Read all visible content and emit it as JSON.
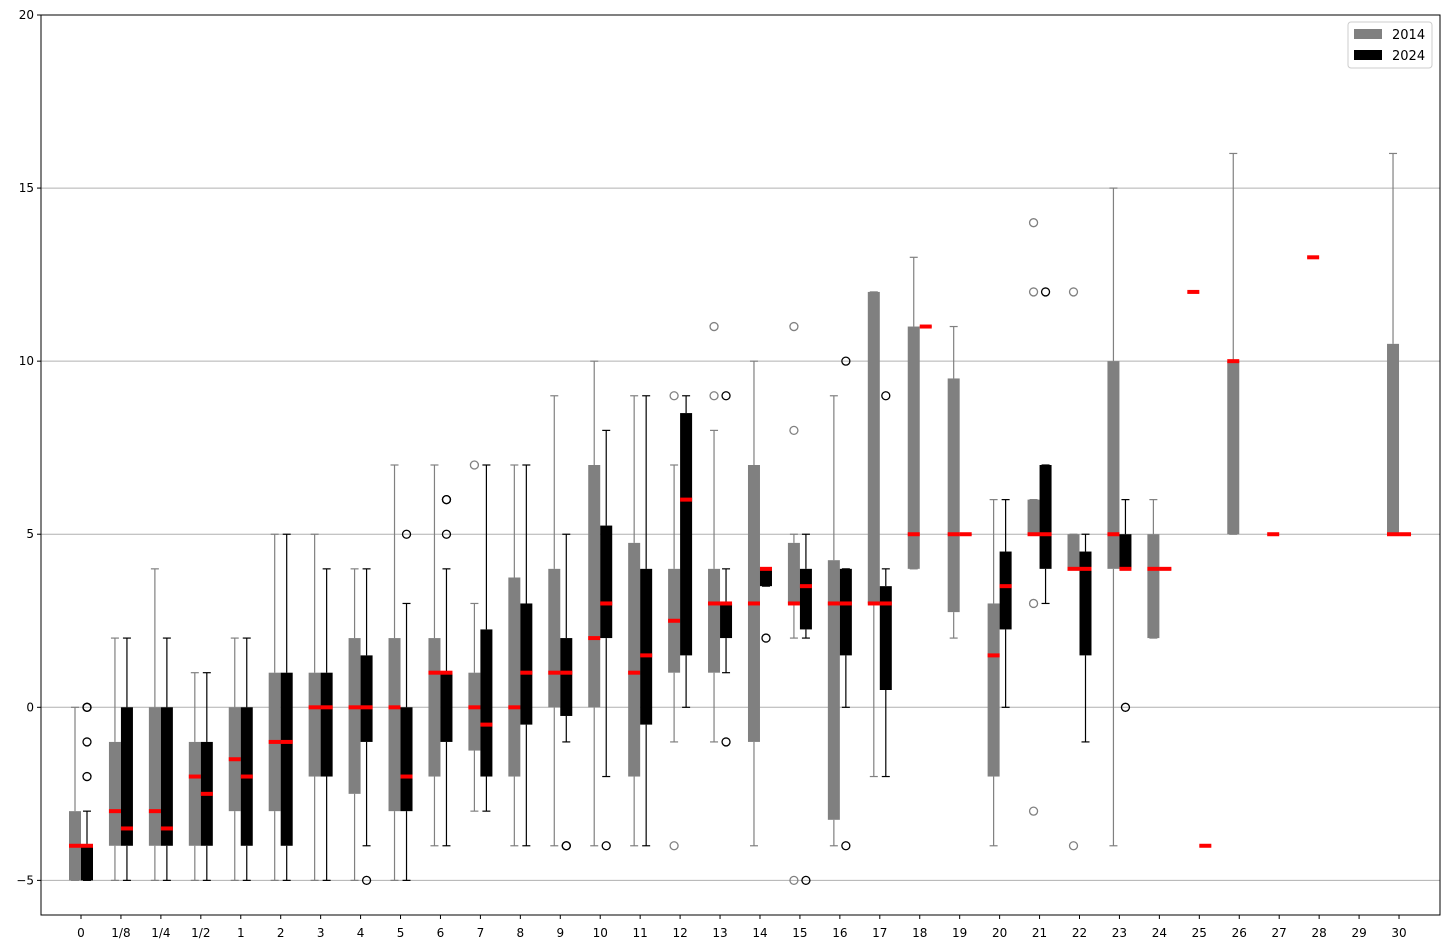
{
  "chart_data": {
    "type": "boxplot",
    "categories": [
      "0",
      "1/8",
      "1/4",
      "1/2",
      "1",
      "2",
      "3",
      "4",
      "5",
      "6",
      "7",
      "8",
      "9",
      "10",
      "11",
      "12",
      "13",
      "14",
      "15",
      "16",
      "17",
      "18",
      "19",
      "20",
      "21",
      "22",
      "23",
      "24",
      "25",
      "26",
      "27",
      "28",
      "29",
      "30"
    ],
    "ylim": [
      -6,
      20
    ],
    "yticks": [
      -5,
      0,
      5,
      10,
      15,
      20
    ],
    "ytick_labels": [
      "−5",
      "0",
      "5",
      "10",
      "15",
      "20"
    ],
    "grid": "y",
    "legend": {
      "position": "top-right"
    },
    "colors": {
      "2014": "#808080",
      "2024": "#000000",
      "median": "#ff0000",
      "grid": "#b0b0b0"
    },
    "series": [
      {
        "name": "2014",
        "boxes": [
          {
            "cat": "0",
            "q1": -5,
            "q3": -3,
            "med": -4,
            "wlo": -5,
            "whi": 0,
            "fliers": []
          },
          {
            "cat": "1/8",
            "q1": -4,
            "q3": -1,
            "med": -3,
            "wlo": -5,
            "whi": 2,
            "fliers": []
          },
          {
            "cat": "1/4",
            "q1": -4,
            "q3": 0,
            "med": -3,
            "wlo": -5,
            "whi": 4,
            "fliers": []
          },
          {
            "cat": "1/2",
            "q1": -4,
            "q3": -1,
            "med": -2,
            "wlo": -5,
            "whi": 1,
            "fliers": []
          },
          {
            "cat": "1",
            "q1": -3,
            "q3": 0,
            "med": -1.5,
            "wlo": -5,
            "whi": 2,
            "fliers": []
          },
          {
            "cat": "2",
            "q1": -3,
            "q3": 1,
            "med": -1,
            "wlo": -5,
            "whi": 5,
            "fliers": []
          },
          {
            "cat": "3",
            "q1": -2,
            "q3": 1,
            "med": 0,
            "wlo": -5,
            "whi": 5,
            "fliers": []
          },
          {
            "cat": "4",
            "q1": -2.5,
            "q3": 2,
            "med": 0,
            "wlo": -5,
            "whi": 4,
            "fliers": []
          },
          {
            "cat": "5",
            "q1": -3,
            "q3": 2,
            "med": 0,
            "wlo": -5,
            "whi": 7,
            "fliers": []
          },
          {
            "cat": "6",
            "q1": -2,
            "q3": 2,
            "med": 1,
            "wlo": -4,
            "whi": 7,
            "fliers": []
          },
          {
            "cat": "7",
            "q1": -1.25,
            "q3": 1,
            "med": 0,
            "wlo": -3,
            "whi": 3,
            "fliers": [
              7
            ]
          },
          {
            "cat": "8",
            "q1": -2,
            "q3": 3.75,
            "med": 0,
            "wlo": -4,
            "whi": 7,
            "fliers": []
          },
          {
            "cat": "9",
            "q1": 0,
            "q3": 4,
            "med": 1,
            "wlo": -4,
            "whi": 9,
            "fliers": []
          },
          {
            "cat": "10",
            "q1": 0,
            "q3": 7,
            "med": 2,
            "wlo": -4,
            "whi": 10,
            "fliers": []
          },
          {
            "cat": "11",
            "q1": -2,
            "q3": 4.75,
            "med": 1,
            "wlo": -4,
            "whi": 9,
            "fliers": []
          },
          {
            "cat": "12",
            "q1": 1,
            "q3": 4,
            "med": 2.5,
            "wlo": -1,
            "whi": 7,
            "fliers": [
              9,
              -4
            ]
          },
          {
            "cat": "13",
            "q1": 1,
            "q3": 4,
            "med": 3,
            "wlo": -1,
            "whi": 8,
            "fliers": [
              11,
              9
            ]
          },
          {
            "cat": "14",
            "q1": -1,
            "q3": 7,
            "med": 3,
            "wlo": -4,
            "whi": 10,
            "fliers": []
          },
          {
            "cat": "15",
            "q1": 3,
            "q3": 4.75,
            "med": 3,
            "wlo": 2,
            "whi": 5,
            "fliers": [
              11,
              8,
              -5
            ]
          },
          {
            "cat": "16",
            "q1": -3.25,
            "q3": 4.25,
            "med": 3,
            "wlo": -4,
            "whi": 9,
            "fliers": []
          },
          {
            "cat": "17",
            "q1": 3,
            "q3": 12,
            "med": 3,
            "wlo": -2,
            "whi": 12,
            "fliers": []
          },
          {
            "cat": "18",
            "q1": 4,
            "q3": 11,
            "med": 5,
            "wlo": 4,
            "whi": 13,
            "fliers": []
          },
          {
            "cat": "19",
            "q1": 2.75,
            "q3": 9.5,
            "med": 5,
            "wlo": 2,
            "whi": 11,
            "fliers": []
          },
          {
            "cat": "20",
            "q1": -2,
            "q3": 3,
            "med": 1.5,
            "wlo": -4,
            "whi": 6,
            "fliers": []
          },
          {
            "cat": "21",
            "q1": 5,
            "q3": 6,
            "med": 5,
            "wlo": 5,
            "whi": 6,
            "fliers": [
              14,
              12,
              3,
              -3
            ]
          },
          {
            "cat": "22",
            "q1": 4,
            "q3": 5,
            "med": 4,
            "wlo": 4,
            "whi": 5,
            "fliers": [
              12,
              -4
            ]
          },
          {
            "cat": "23",
            "q1": 4,
            "q3": 10,
            "med": 5,
            "wlo": -4,
            "whi": 15,
            "fliers": []
          },
          {
            "cat": "24",
            "q1": 2,
            "q3": 5,
            "med": 4,
            "wlo": 2,
            "whi": 6,
            "fliers": []
          },
          {
            "cat": "25",
            "q1": 12,
            "q3": 12,
            "med": 12,
            "wlo": 12,
            "whi": 12,
            "fliers": []
          },
          {
            "cat": "26",
            "q1": 5,
            "q3": 10,
            "med": 10,
            "wlo": 5,
            "whi": 16,
            "fliers": []
          },
          {
            "cat": "27",
            "q1": 5,
            "q3": 5,
            "med": 5,
            "wlo": 5,
            "whi": 5,
            "fliers": []
          },
          {
            "cat": "28",
            "q1": 13,
            "q3": 13,
            "med": 13,
            "wlo": 13,
            "whi": 13,
            "fliers": []
          },
          {
            "cat": "30",
            "q1": 5,
            "q3": 10.5,
            "med": 5,
            "wlo": 5,
            "whi": 16,
            "fliers": []
          }
        ]
      },
      {
        "name": "2024",
        "boxes": [
          {
            "cat": "0",
            "q1": -5,
            "q3": -4,
            "med": -4,
            "wlo": -5,
            "whi": -3,
            "fliers": [
              0,
              0,
              -1,
              -2
            ]
          },
          {
            "cat": "1/8",
            "q1": -4,
            "q3": 0,
            "med": -3.5,
            "wlo": -5,
            "whi": 2,
            "fliers": []
          },
          {
            "cat": "1/4",
            "q1": -4,
            "q3": 0,
            "med": -3.5,
            "wlo": -5,
            "whi": 2,
            "fliers": []
          },
          {
            "cat": "1/2",
            "q1": -4,
            "q3": -1,
            "med": -2.5,
            "wlo": -5,
            "whi": 1,
            "fliers": []
          },
          {
            "cat": "1",
            "q1": -4,
            "q3": 0,
            "med": -2,
            "wlo": -5,
            "whi": 2,
            "fliers": []
          },
          {
            "cat": "2",
            "q1": -4,
            "q3": 1,
            "med": -1,
            "wlo": -5,
            "whi": 5,
            "fliers": []
          },
          {
            "cat": "3",
            "q1": -2,
            "q3": 1,
            "med": 0,
            "wlo": -5,
            "whi": 4,
            "fliers": []
          },
          {
            "cat": "4",
            "q1": -1,
            "q3": 1.5,
            "med": 0,
            "wlo": -4,
            "whi": 4,
            "fliers": [
              -5
            ]
          },
          {
            "cat": "5",
            "q1": -3,
            "q3": 0,
            "med": -2,
            "wlo": -5,
            "whi": 3,
            "fliers": [
              5
            ]
          },
          {
            "cat": "6",
            "q1": -1,
            "q3": 1,
            "med": 1,
            "wlo": -4,
            "whi": 4,
            "fliers": [
              6,
              6,
              5
            ]
          },
          {
            "cat": "7",
            "q1": -2,
            "q3": 2.25,
            "med": -0.5,
            "wlo": -3,
            "whi": 7,
            "fliers": []
          },
          {
            "cat": "8",
            "q1": -0.5,
            "q3": 3,
            "med": 1,
            "wlo": -4,
            "whi": 7,
            "fliers": []
          },
          {
            "cat": "9",
            "q1": -0.25,
            "q3": 2,
            "med": 1,
            "wlo": -1,
            "whi": 5,
            "fliers": [
              -4,
              -4
            ]
          },
          {
            "cat": "10",
            "q1": 2,
            "q3": 5.25,
            "med": 3,
            "wlo": -2,
            "whi": 8,
            "fliers": [
              -4
            ]
          },
          {
            "cat": "11",
            "q1": -0.5,
            "q3": 4,
            "med": 1.5,
            "wlo": -4,
            "whi": 9,
            "fliers": []
          },
          {
            "cat": "12",
            "q1": 1.5,
            "q3": 8.5,
            "med": 6,
            "wlo": 0,
            "whi": 9,
            "fliers": []
          },
          {
            "cat": "13",
            "q1": 2,
            "q3": 3,
            "med": 3,
            "wlo": 1,
            "whi": 4,
            "fliers": [
              9,
              -1
            ]
          },
          {
            "cat": "14",
            "q1": 3.5,
            "q3": 4,
            "med": 4,
            "wlo": 3.5,
            "whi": 4,
            "fliers": [
              2
            ]
          },
          {
            "cat": "15",
            "q1": 2.25,
            "q3": 4,
            "med": 3.5,
            "wlo": 2,
            "whi": 5,
            "fliers": [
              -5
            ]
          },
          {
            "cat": "16",
            "q1": 1.5,
            "q3": 4,
            "med": 3,
            "wlo": 0,
            "whi": 4,
            "fliers": [
              10,
              -4
            ]
          },
          {
            "cat": "17",
            "q1": 0.5,
            "q3": 3.5,
            "med": 3,
            "wlo": -2,
            "whi": 4,
            "fliers": [
              9
            ]
          },
          {
            "cat": "18",
            "q1": 11,
            "q3": 11,
            "med": 11,
            "wlo": 11,
            "whi": 11,
            "fliers": []
          },
          {
            "cat": "19",
            "q1": 5,
            "q3": 5,
            "med": 5,
            "wlo": 5,
            "whi": 5,
            "fliers": []
          },
          {
            "cat": "20",
            "q1": 2.25,
            "q3": 4.5,
            "med": 3.5,
            "wlo": 0,
            "whi": 6,
            "fliers": []
          },
          {
            "cat": "21",
            "q1": 4,
            "q3": 7,
            "med": 5,
            "wlo": 3,
            "whi": 7,
            "fliers": [
              12
            ]
          },
          {
            "cat": "22",
            "q1": 1.5,
            "q3": 4.5,
            "med": 4,
            "wlo": -1,
            "whi": 5,
            "fliers": []
          },
          {
            "cat": "23",
            "q1": 4,
            "q3": 5,
            "med": 4,
            "wlo": 4,
            "whi": 6,
            "fliers": [
              0
            ]
          },
          {
            "cat": "24",
            "q1": 4,
            "q3": 4,
            "med": 4,
            "wlo": 4,
            "whi": 4,
            "fliers": []
          },
          {
            "cat": "25",
            "q1": -4,
            "q3": -4,
            "med": -4,
            "wlo": -4,
            "whi": -4,
            "fliers": []
          },
          {
            "cat": "30",
            "q1": 5,
            "q3": 5,
            "med": 5,
            "wlo": 5,
            "whi": 5,
            "fliers": []
          }
        ]
      }
    ]
  }
}
